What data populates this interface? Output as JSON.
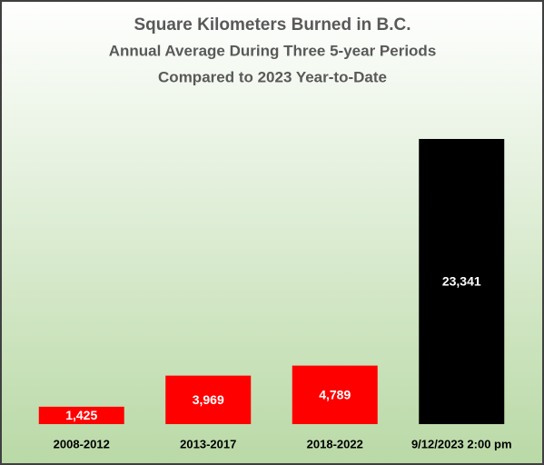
{
  "chart_data": {
    "type": "bar",
    "title": "Square Kilometers Burned in B.C.",
    "subtitle": [
      "Annual  Average During Three 5-year Periods",
      "Compared to 2023 Year-to-Date"
    ],
    "categories": [
      "2008-2012",
      "2013-2017",
      "2018-2022",
      "9/12/2023 2:00 pm"
    ],
    "values": [
      1425,
      3969,
      4789,
      23341
    ],
    "value_labels": [
      "1,425",
      "3,969",
      "4,789",
      "23,341"
    ],
    "colors": [
      "#ff0000",
      "#ff0000",
      "#ff0000",
      "#000000"
    ]
  }
}
